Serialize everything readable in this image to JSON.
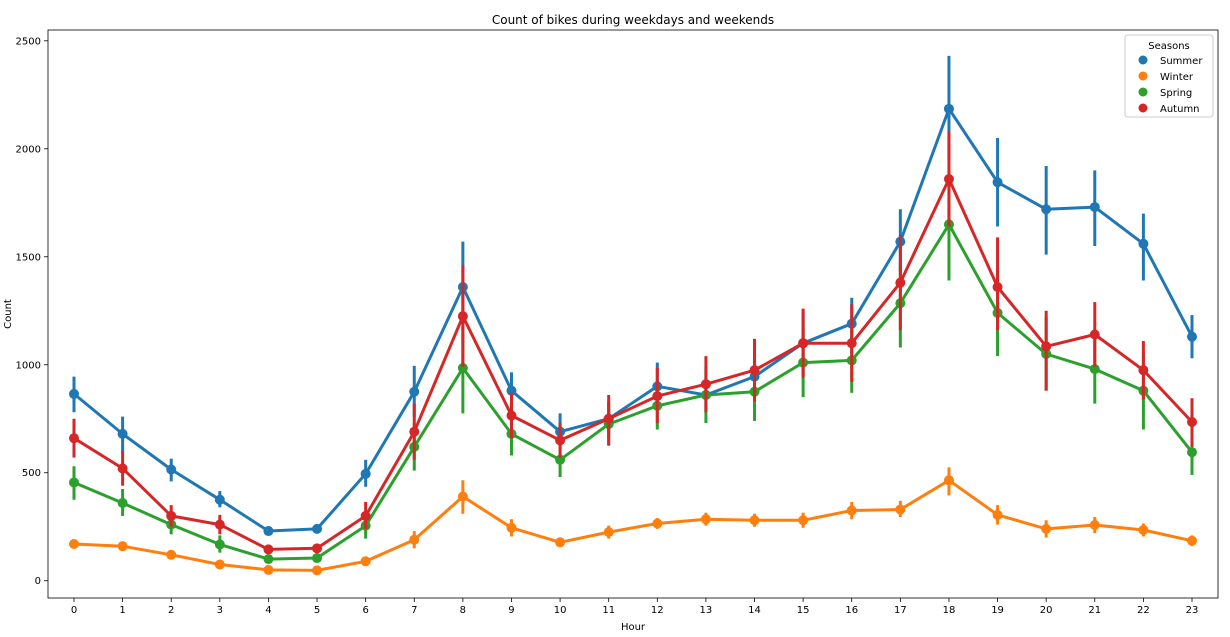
{
  "chart_data": {
    "type": "line",
    "title": "Count of bikes during weekdays and weekends",
    "xlabel": "Hour",
    "ylabel": "Count",
    "ylim": [
      -80,
      2550
    ],
    "yticks": [
      0,
      500,
      1000,
      1500,
      2000,
      2500
    ],
    "categories": [
      "0",
      "1",
      "2",
      "3",
      "4",
      "5",
      "6",
      "7",
      "8",
      "9",
      "10",
      "11",
      "12",
      "13",
      "14",
      "15",
      "16",
      "17",
      "18",
      "19",
      "20",
      "21",
      "22",
      "23"
    ],
    "grid": false,
    "legend": {
      "title": "Seasons",
      "placement": "top-right"
    },
    "series": [
      {
        "name": "Summer",
        "color": "#1f77b4",
        "values": [
          865,
          680,
          515,
          375,
          230,
          240,
          495,
          875,
          1360,
          880,
          690,
          750,
          900,
          860,
          945,
          1100,
          1190,
          1570,
          2185,
          1845,
          1720,
          1730,
          1560,
          1130
        ],
        "ci": [
          [
            780,
            945
          ],
          [
            590,
            760
          ],
          [
            460,
            565
          ],
          [
            340,
            415
          ],
          [
            210,
            250
          ],
          [
            220,
            260
          ],
          [
            435,
            560
          ],
          [
            760,
            995
          ],
          [
            1160,
            1570
          ],
          [
            770,
            965
          ],
          [
            620,
            775
          ],
          [
            660,
            830
          ],
          [
            800,
            1010
          ],
          [
            780,
            940
          ],
          [
            840,
            1050
          ],
          [
            950,
            1250
          ],
          [
            1060,
            1310
          ],
          [
            1430,
            1720
          ],
          [
            1950,
            2430
          ],
          [
            1640,
            2050
          ],
          [
            1510,
            1920
          ],
          [
            1550,
            1900
          ],
          [
            1390,
            1700
          ],
          [
            1030,
            1230
          ]
        ]
      },
      {
        "name": "Winter",
        "color": "#ff7f0e",
        "values": [
          170,
          160,
          120,
          75,
          50,
          48,
          90,
          190,
          390,
          245,
          178,
          225,
          265,
          285,
          280,
          280,
          325,
          330,
          465,
          305,
          240,
          258,
          235,
          185
        ],
        "ci": [
          [
            150,
            190
          ],
          [
            140,
            180
          ],
          [
            105,
            135
          ],
          [
            60,
            90
          ],
          [
            40,
            60
          ],
          [
            38,
            58
          ],
          [
            75,
            105
          ],
          [
            150,
            230
          ],
          [
            310,
            465
          ],
          [
            205,
            285
          ],
          [
            160,
            195
          ],
          [
            195,
            255
          ],
          [
            240,
            290
          ],
          [
            255,
            315
          ],
          [
            250,
            310
          ],
          [
            245,
            315
          ],
          [
            285,
            365
          ],
          [
            295,
            370
          ],
          [
            395,
            525
          ],
          [
            260,
            350
          ],
          [
            200,
            280
          ],
          [
            220,
            295
          ],
          [
            205,
            265
          ],
          [
            160,
            210
          ]
        ]
      },
      {
        "name": "Spring",
        "color": "#2ca02c",
        "values": [
          455,
          360,
          260,
          168,
          100,
          105,
          255,
          620,
          985,
          680,
          560,
          725,
          810,
          860,
          875,
          1010,
          1020,
          1285,
          1650,
          1240,
          1050,
          980,
          880,
          595
        ],
        "ci": [
          [
            375,
            530
          ],
          [
            300,
            425
          ],
          [
            215,
            305
          ],
          [
            130,
            210
          ],
          [
            80,
            120
          ],
          [
            85,
            125
          ],
          [
            195,
            320
          ],
          [
            510,
            730
          ],
          [
            775,
            1175
          ],
          [
            580,
            780
          ],
          [
            480,
            640
          ],
          [
            630,
            820
          ],
          [
            700,
            925
          ],
          [
            730,
            990
          ],
          [
            740,
            1010
          ],
          [
            850,
            1170
          ],
          [
            870,
            1160
          ],
          [
            1080,
            1480
          ],
          [
            1390,
            1900
          ],
          [
            1040,
            1450
          ],
          [
            880,
            1220
          ],
          [
            820,
            1150
          ],
          [
            700,
            1060
          ],
          [
            490,
            700
          ]
        ]
      },
      {
        "name": "Autumn",
        "color": "#d62728",
        "values": [
          660,
          520,
          300,
          260,
          145,
          150,
          300,
          690,
          1225,
          765,
          650,
          750,
          855,
          910,
          975,
          1100,
          1100,
          1380,
          1860,
          1360,
          1085,
          1140,
          975,
          735
        ],
        "ci": [
          [
            570,
            750
          ],
          [
            440,
            600
          ],
          [
            250,
            350
          ],
          [
            215,
            305
          ],
          [
            125,
            165
          ],
          [
            130,
            170
          ],
          [
            240,
            365
          ],
          [
            560,
            820
          ],
          [
            990,
            1460
          ],
          [
            660,
            870
          ],
          [
            570,
            730
          ],
          [
            625,
            860
          ],
          [
            730,
            985
          ],
          [
            780,
            1040
          ],
          [
            830,
            1120
          ],
          [
            940,
            1260
          ],
          [
            920,
            1280
          ],
          [
            1160,
            1600
          ],
          [
            1640,
            2080
          ],
          [
            1160,
            1590
          ],
          [
            880,
            1250
          ],
          [
            990,
            1290
          ],
          [
            840,
            1110
          ],
          [
            620,
            845
          ]
        ]
      }
    ]
  }
}
